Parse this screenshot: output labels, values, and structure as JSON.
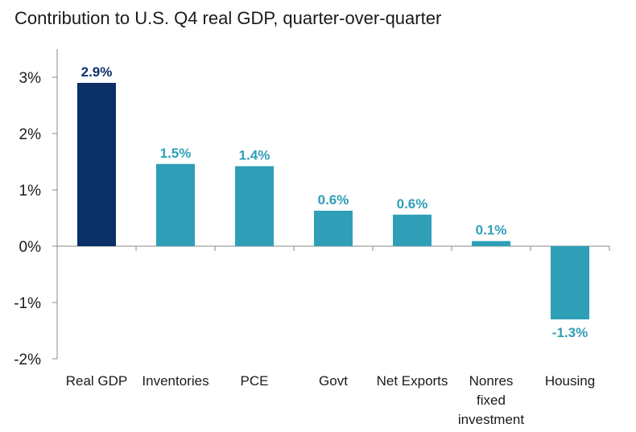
{
  "chart_data": {
    "type": "bar",
    "title": "Contribution to U.S. Q4 real GDP, quarter-over-quarter",
    "xlabel": "",
    "ylabel": "",
    "ylim": [
      -2,
      3.5
    ],
    "yticks": [
      -2,
      -1,
      0,
      1,
      2,
      3
    ],
    "ytick_labels": [
      "-2%",
      "-1%",
      "0%",
      "1%",
      "2%",
      "3%"
    ],
    "grid": false,
    "legend": "none",
    "categories": [
      [
        "Real GDP"
      ],
      [
        "Inventories"
      ],
      [
        "PCE"
      ],
      [
        "Govt"
      ],
      [
        "Net Exports"
      ],
      [
        "Nonres",
        "fixed",
        "investment"
      ],
      [
        "Housing"
      ]
    ],
    "values": [
      2.9,
      1.46,
      1.42,
      0.63,
      0.56,
      0.09,
      -1.3
    ],
    "data_labels": [
      "2.9%",
      "1.5%",
      "1.4%",
      "0.6%",
      "0.6%",
      "0.1%",
      "-1.3%"
    ],
    "colors": {
      "highlight": "#0b3068",
      "bar": "#2e9fb7",
      "label_highlight": "#0b3068",
      "label": "#2e9fb7",
      "axis": "#8a8a8a"
    },
    "highlight_index": 0
  }
}
